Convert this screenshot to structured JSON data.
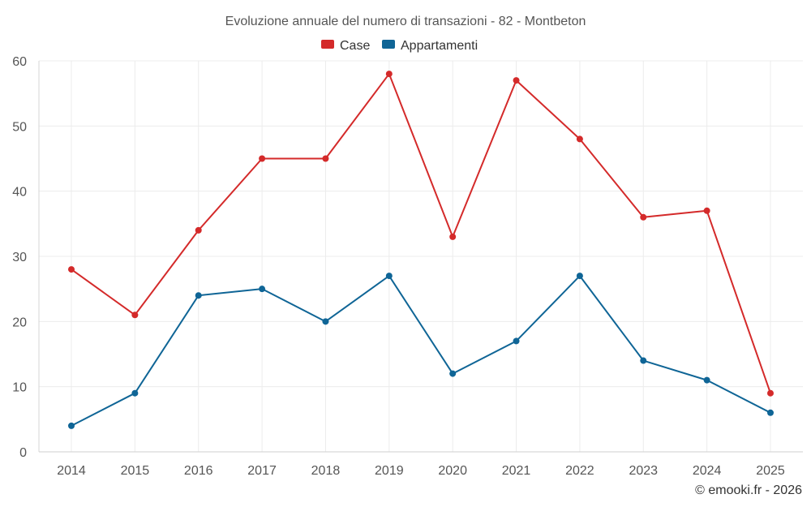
{
  "chart_data": {
    "type": "line",
    "title": "Evoluzione annuale del numero di transazioni - 82 - Montbeton",
    "categories": [
      "2014",
      "2015",
      "2016",
      "2017",
      "2018",
      "2019",
      "2020",
      "2021",
      "2022",
      "2023",
      "2024",
      "2025"
    ],
    "series": [
      {
        "name": "Case",
        "color": "#d42a2a",
        "values": [
          28,
          21,
          34,
          45,
          45,
          58,
          33,
          57,
          48,
          36,
          37,
          9
        ]
      },
      {
        "name": "Appartamenti",
        "color": "#0f6596",
        "values": [
          4,
          9,
          24,
          25,
          20,
          27,
          12,
          17,
          27,
          14,
          11,
          6
        ]
      }
    ],
    "ylim": [
      0,
      60
    ],
    "yticks": [
      0,
      10,
      20,
      30,
      40,
      50,
      60
    ],
    "xlabel": "",
    "ylabel": "",
    "grid": true,
    "legend": "top-center"
  },
  "credit": "© emooki.fr - 2026"
}
